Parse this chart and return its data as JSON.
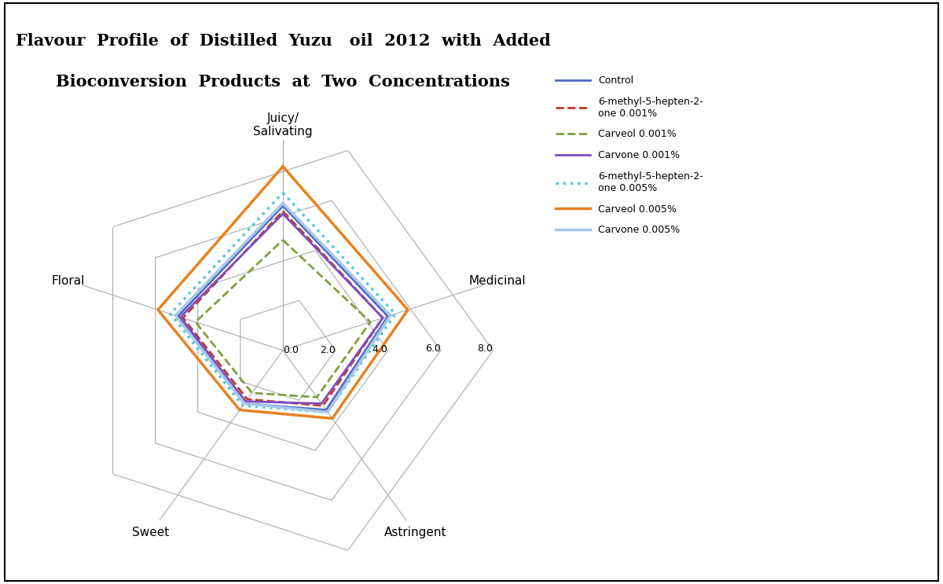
{
  "title_line1": "Flavour  Profile  of  Distilled  Yuzu   oil  2012  with  Added",
  "title_line2": "Bioconversion  Products  at  Two  Concentrations",
  "categories": [
    "Juicy/\nSalivating",
    "Medicinal",
    "Astringent",
    "Sweet",
    "Floral"
  ],
  "r_max": 8.0,
  "r_ticks": [
    0.0,
    2.0,
    4.0,
    6.0,
    8.0
  ],
  "series": [
    {
      "label": "Control",
      "values": [
        5.5,
        4.2,
        2.8,
        2.5,
        4.2
      ],
      "color": "#4F69C6",
      "linestyle": "-",
      "linewidth": 2.0
    },
    {
      "label": "6-methyl-5-hepten-2-\none 0.001%",
      "values": [
        5.3,
        4.0,
        2.6,
        2.3,
        4.0
      ],
      "color": "#C0392B",
      "linestyle": "--",
      "linewidth": 2.0
    },
    {
      "label": "Carveol 0.001%",
      "values": [
        4.2,
        3.5,
        2.2,
        2.0,
        3.5
      ],
      "color": "#7F9F3F",
      "linestyle": "--",
      "linewidth": 2.0
    },
    {
      "label": "Carvone 0.001%",
      "values": [
        5.2,
        4.0,
        2.5,
        2.4,
        4.1
      ],
      "color": "#7B4FBF",
      "linestyle": "-",
      "linewidth": 2.0
    },
    {
      "label": "6-methyl-5-hepten-2-\none 0.005%",
      "values": [
        6.0,
        4.5,
        2.9,
        2.6,
        4.5
      ],
      "color": "#5BC8D8",
      "linestyle": ":",
      "linewidth": 2.5
    },
    {
      "label": "Carveol 0.005%",
      "values": [
        7.0,
        5.0,
        3.2,
        2.8,
        5.0
      ],
      "color": "#E8821E",
      "linestyle": "-",
      "linewidth": 2.5
    },
    {
      "label": "Carvone 0.005%",
      "values": [
        5.6,
        4.3,
        2.9,
        2.5,
        4.3
      ],
      "color": "#A8C8E8",
      "linestyle": "-",
      "linewidth": 2.5
    }
  ],
  "background_color": "#FFFFFF",
  "grid_color": "#AAAAAA",
  "title_fontsize": 15,
  "label_fontsize": 11,
  "tick_fontsize": 9,
  "legend_fontsize": 9
}
